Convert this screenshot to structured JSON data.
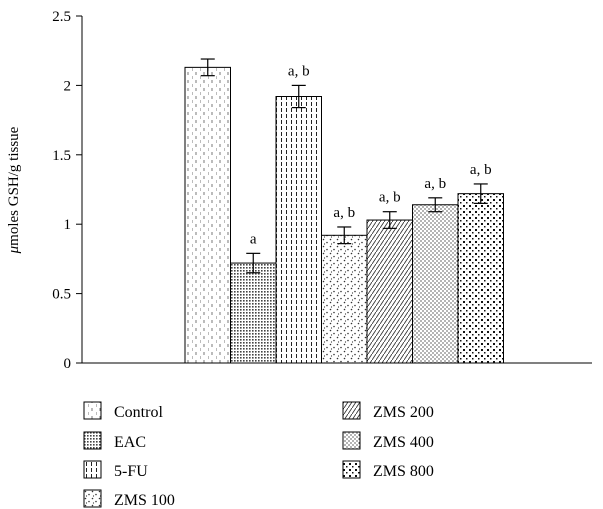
{
  "chart_data": {
    "type": "bar",
    "ylabel_prefix": "μ",
    "ylabel_rest": "moles GSH/g tissue",
    "ylim": [
      0,
      2.5
    ],
    "yticks": [
      "0",
      "0.5",
      "1",
      "1.5",
      "2",
      "2.5"
    ],
    "grid": false,
    "legend_position": "bottom",
    "categories": [
      "Control",
      "EAC",
      "5-FU",
      "ZMS 100",
      "ZMS 200",
      "ZMS 400",
      "ZMS 800"
    ],
    "values": [
      2.13,
      0.72,
      1.92,
      0.92,
      1.03,
      1.14,
      1.22
    ],
    "errors": [
      0.06,
      0.07,
      0.08,
      0.06,
      0.06,
      0.05,
      0.07
    ],
    "annotations": [
      "",
      "a",
      "a, b",
      "a, b",
      "a, b",
      "a, b",
      "a, b"
    ]
  }
}
